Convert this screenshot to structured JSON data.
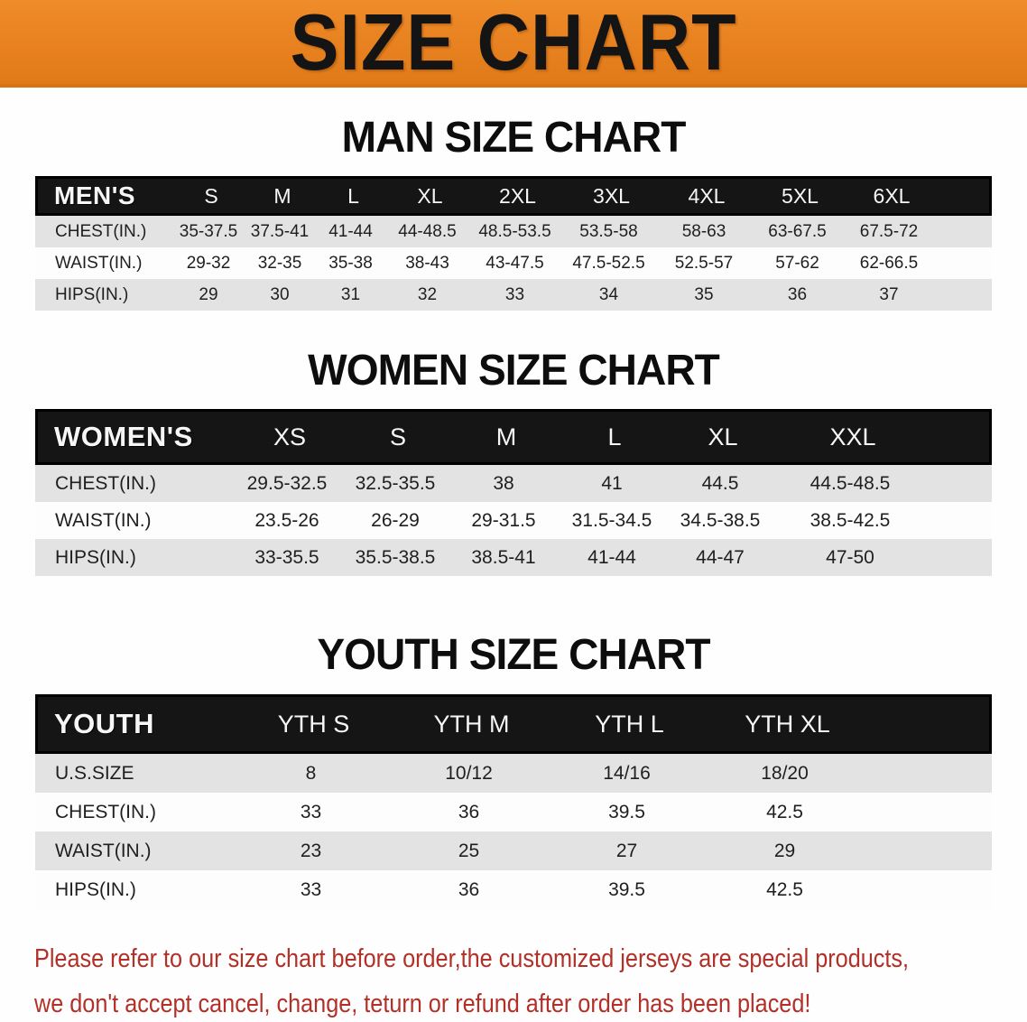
{
  "banner": {
    "title": "SIZE CHART",
    "bg_color": "#e8811f",
    "text_color": "#141414"
  },
  "men": {
    "title": "MAN SIZE CHART",
    "header_label": "MEN'S",
    "sizes": [
      "S",
      "M",
      "L",
      "XL",
      "2XL",
      "3XL",
      "4XL",
      "5XL",
      "6XL"
    ],
    "rows": [
      {
        "label": "CHEST(IN.)",
        "values": [
          "35-37.5",
          "37.5-41",
          "41-44",
          "44-48.5",
          "48.5-53.5",
          "53.5-58",
          "58-63",
          "63-67.5",
          "67.5-72"
        ]
      },
      {
        "label": "WAIST(IN.)",
        "values": [
          "29-32",
          "32-35",
          "35-38",
          "38-43",
          "43-47.5",
          "47.5-52.5",
          "52.5-57",
          "57-62",
          "62-66.5"
        ]
      },
      {
        "label": "HIPS(IN.)",
        "values": [
          "29",
          "30",
          "31",
          "32",
          "33",
          "34",
          "35",
          "36",
          "37"
        ]
      }
    ]
  },
  "women": {
    "title": "WOMEN SIZE CHART",
    "header_label": "WOMEN'S",
    "sizes": [
      "XS",
      "S",
      "M",
      "L",
      "XL",
      "XXL"
    ],
    "rows": [
      {
        "label": "CHEST(IN.)",
        "values": [
          "29.5-32.5",
          "32.5-35.5",
          "38",
          "41",
          "44.5",
          "44.5-48.5"
        ]
      },
      {
        "label": "WAIST(IN.)",
        "values": [
          "23.5-26",
          "26-29",
          "29-31.5",
          "31.5-34.5",
          "34.5-38.5",
          "38.5-42.5"
        ]
      },
      {
        "label": "HIPS(IN.)",
        "values": [
          "33-35.5",
          "35.5-38.5",
          "38.5-41",
          "41-44",
          "44-47",
          "47-50"
        ]
      }
    ]
  },
  "youth": {
    "title": "YOUTH SIZE CHART",
    "header_label": "YOUTH",
    "sizes": [
      "YTH S",
      "YTH M",
      "YTH L",
      "YTH XL"
    ],
    "rows": [
      {
        "label": "U.S.SIZE",
        "values": [
          "8",
          "10/12",
          "14/16",
          "18/20"
        ]
      },
      {
        "label": "CHEST(IN.)",
        "values": [
          "33",
          "36",
          "39.5",
          "42.5"
        ]
      },
      {
        "label": "WAIST(IN.)",
        "values": [
          "23",
          "25",
          "27",
          "29"
        ]
      },
      {
        "label": "HIPS(IN.)",
        "values": [
          "33",
          "36",
          "39.5",
          "42.5"
        ]
      }
    ]
  },
  "footer": {
    "line1": "Please refer to our size chart before order,the customized jerseys are special products,",
    "line2": "we don't accept cancel, change, teturn or refund after order has been placed!",
    "text_color": "#b23027"
  }
}
